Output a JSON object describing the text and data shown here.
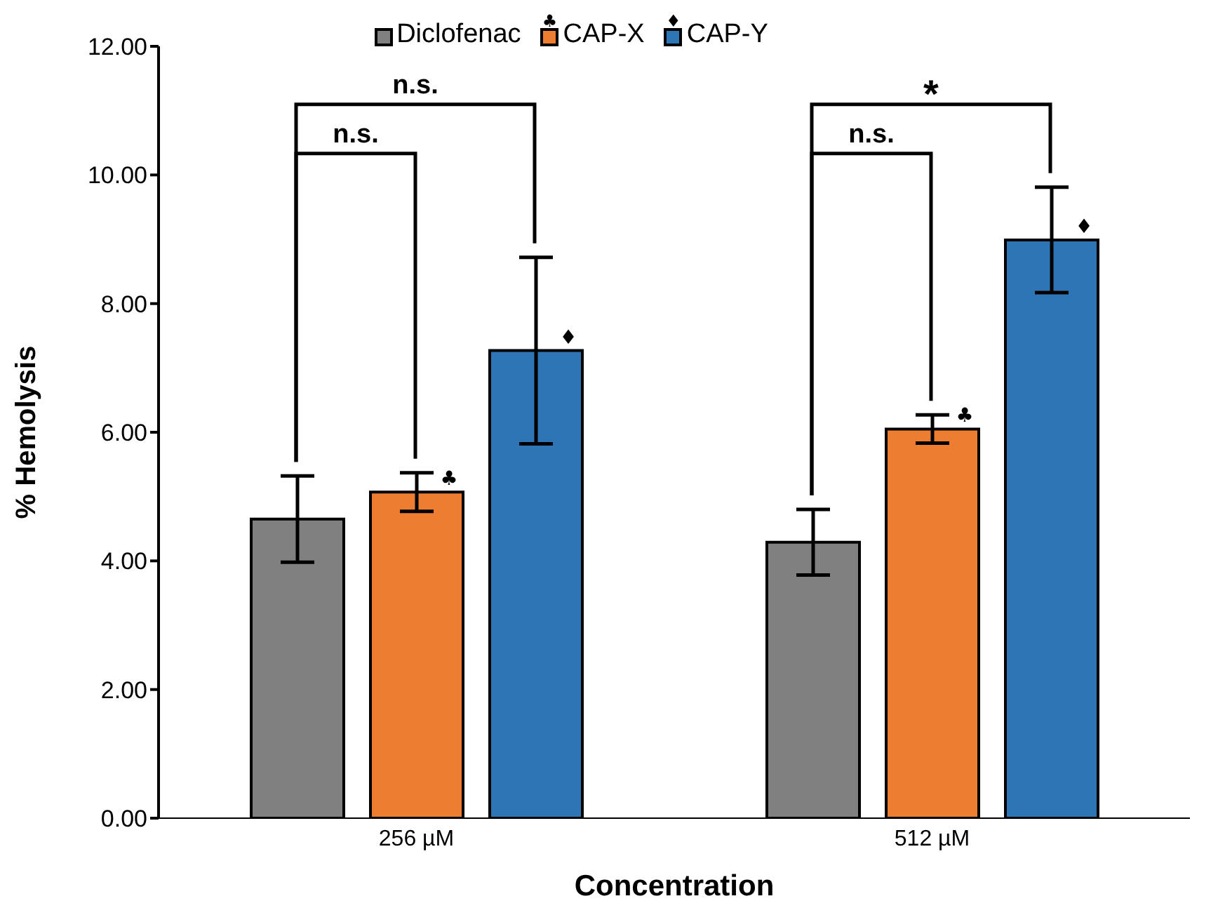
{
  "chart_data": {
    "type": "bar",
    "xlabel": "Concentration",
    "ylabel": "% Hemolysis",
    "categories": [
      "256 µM",
      "512 µM"
    ],
    "series": [
      {
        "name": "Diclofenac",
        "color": "#808080",
        "values": [
          4.65,
          4.29
        ],
        "errors": [
          0.67,
          0.51
        ]
      },
      {
        "name": "CAP-X",
        "color": "#ed7d31",
        "values": [
          5.07,
          6.05
        ],
        "errors": [
          0.3,
          0.22
        ]
      },
      {
        "name": "CAP-Y",
        "color": "#2e75b6",
        "values": [
          7.27,
          8.99
        ],
        "errors": [
          1.45,
          0.82
        ]
      }
    ],
    "ylim": [
      0,
      12
    ],
    "yticks": [
      {
        "value": 0,
        "label": "0.00"
      },
      {
        "value": 2,
        "label": "2.00"
      },
      {
        "value": 4,
        "label": "4.00"
      },
      {
        "value": 6,
        "label": "6.00"
      },
      {
        "value": 8,
        "label": "8.00"
      },
      {
        "value": 10,
        "label": "10.00"
      },
      {
        "value": 12,
        "label": "12.00"
      }
    ],
    "annotations": [
      "n.s.",
      "n.s.",
      "*",
      "n.s.",
      "♣",
      "♦",
      "♣",
      "♦"
    ],
    "legend": "top",
    "grid": false
  }
}
